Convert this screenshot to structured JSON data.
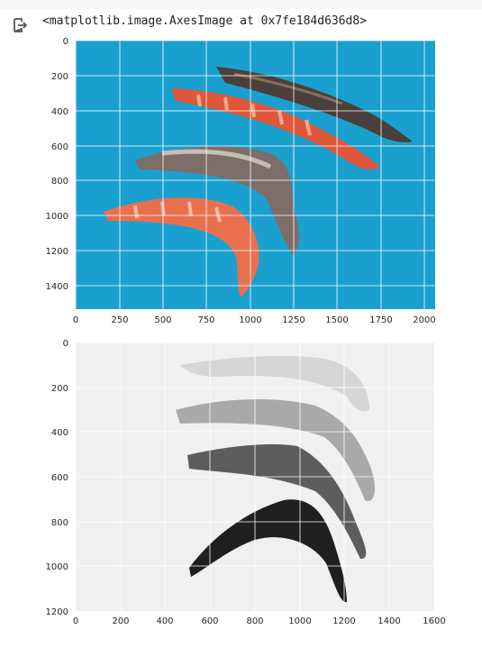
{
  "cell_output": {
    "icon": "output-redirect-icon",
    "text": "<matplotlib.image.AxesImage at 0x7fe184d636d8>"
  },
  "plot1": {
    "description_colors": {
      "background": "#1aa0cf",
      "grid": "#ffffff"
    },
    "x_ticks": [
      "0",
      "250",
      "500",
      "750",
      "1000",
      "1250",
      "1500",
      "1750",
      "2000"
    ],
    "y_ticks": [
      "0",
      "200",
      "400",
      "600",
      "800",
      "1000",
      "1200",
      "1400"
    ]
  },
  "plot2": {
    "description_colors": {
      "background": "#f0f0f0",
      "grid": "#ffffff"
    },
    "x_ticks": [
      "0",
      "200",
      "400",
      "600",
      "800",
      "1000",
      "1200",
      "1400",
      "1600"
    ],
    "y_ticks": [
      "0",
      "200",
      "400",
      "600",
      "800",
      "1000",
      "1200"
    ]
  }
}
